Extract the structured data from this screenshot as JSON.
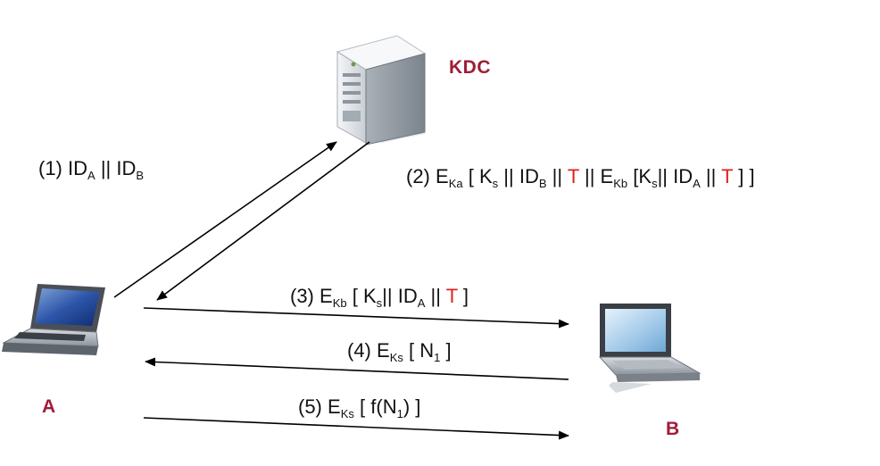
{
  "colors": {
    "entity_label": "#a01d37",
    "highlight": "#e02020",
    "arrow": "#000000"
  },
  "entities": {
    "kdc": {
      "label": "KDC",
      "icon": "server-tower-icon"
    },
    "a": {
      "label": "A",
      "icon": "laptop-icon"
    },
    "b": {
      "label": "B",
      "icon": "laptop-icon"
    }
  },
  "messages": {
    "m1": {
      "n": "(1)",
      "id": "ID",
      "sub_a": "A",
      "sep": "||",
      "sub_b": "B"
    },
    "m2": {
      "n": "(2)",
      "e": "E",
      "k_outer": "Ka",
      "open": "[",
      "ks": "K",
      "s": "s",
      "sep": "||",
      "id": "ID",
      "sub_b": "B",
      "t": "T",
      "k_inner": "Kb",
      "inner_open": "[K",
      "sub_a": "A",
      "close": "] ]"
    },
    "m3": {
      "n": "(3)",
      "e": "E",
      "k": "Kb",
      "open": "[",
      "ks": "K",
      "s": "s",
      "sep": "||",
      "id": "ID",
      "sub_a": "A",
      "t": "T",
      "close": "]"
    },
    "m4": {
      "n": "(4)",
      "e": "E",
      "k": "Ks",
      "open": "[",
      "nn": "N",
      "one": "1",
      "close": "]"
    },
    "m5": {
      "n": "(5)",
      "e": "E",
      "k": "Ks",
      "open": "[",
      "f": "f(N",
      "one": "1",
      "close": ") ]"
    }
  }
}
